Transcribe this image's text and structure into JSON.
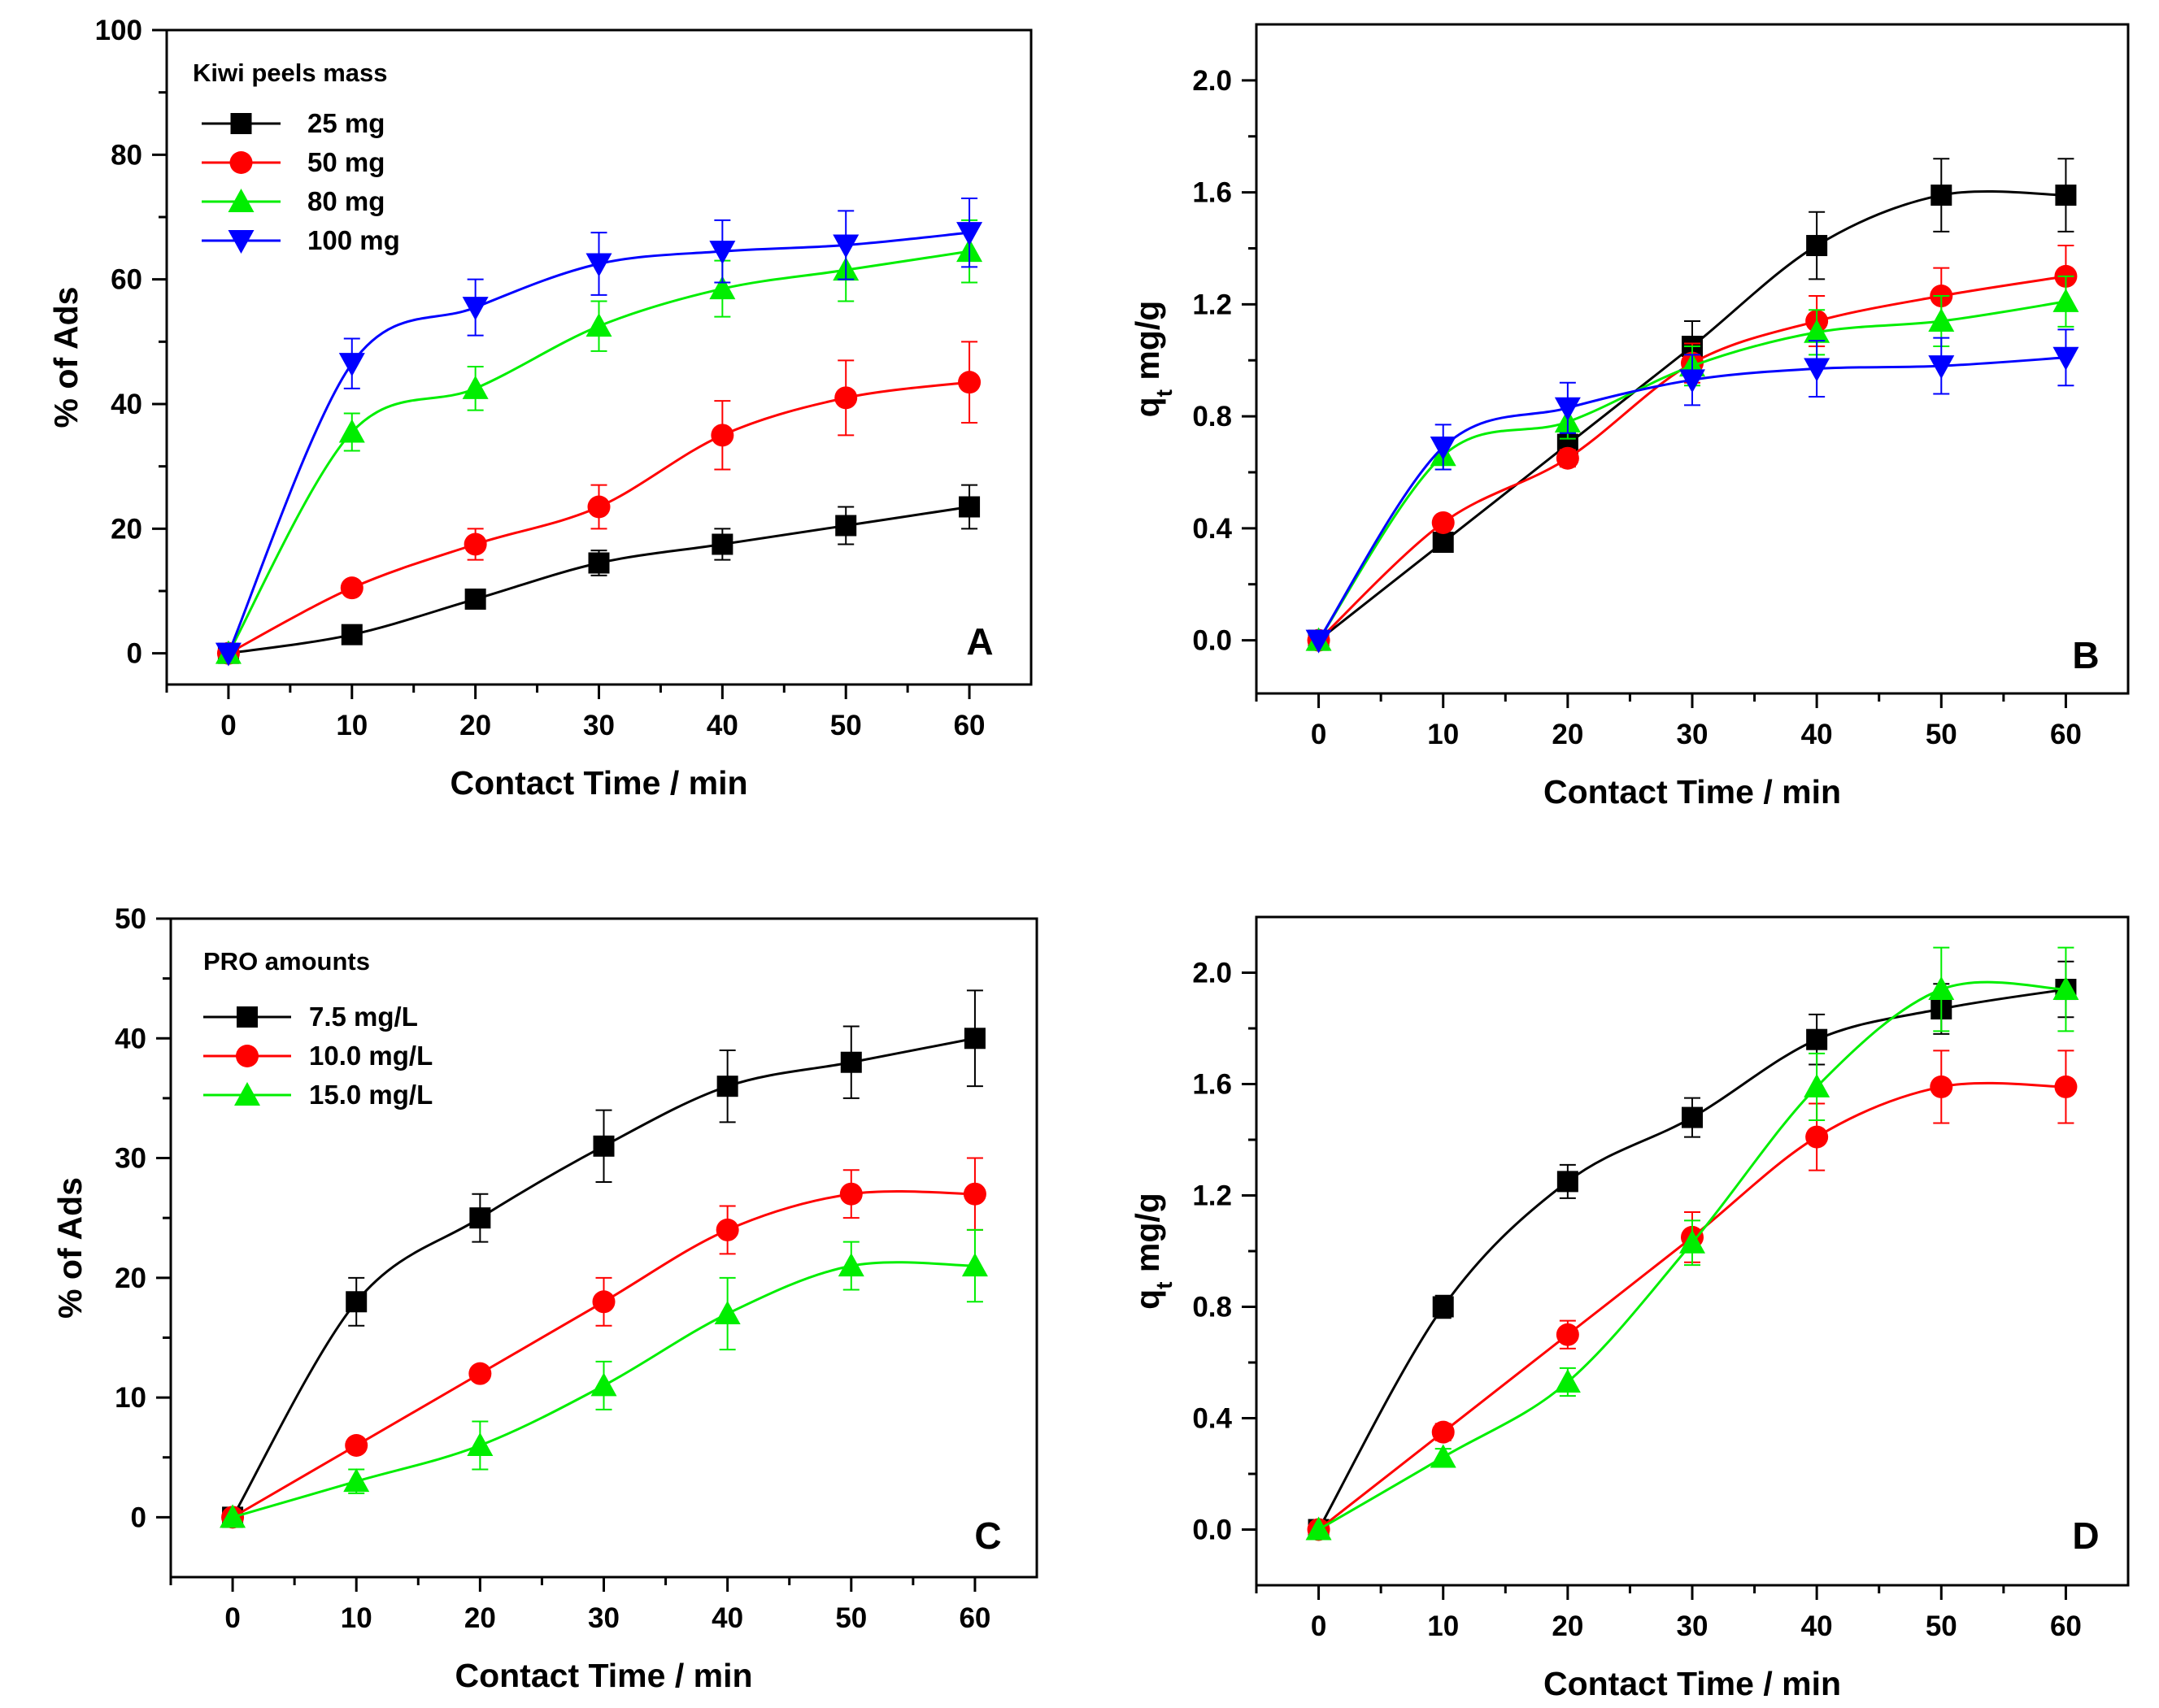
{
  "chart_data": [
    {
      "panel": "A",
      "type": "line",
      "xlabel": "Contact Time / min",
      "ylabel": "% of Ads",
      "xlim": [
        -5,
        65
      ],
      "ylim": [
        -5,
        100
      ],
      "xticks": [
        0,
        10,
        20,
        30,
        40,
        50,
        60
      ],
      "yticks": [
        0,
        20,
        40,
        60,
        80,
        100
      ],
      "legend_title": "Kiwi peels mass",
      "legend_position": "top-left",
      "x": [
        0,
        10,
        20,
        30,
        40,
        50,
        60
      ],
      "series": [
        {
          "name": "25 mg",
          "color": "#000000",
          "marker": "square",
          "values": [
            0,
            3,
            8.7,
            14.5,
            17.5,
            20.5,
            23.5
          ],
          "errors": [
            0,
            0,
            1.5,
            2,
            2.5,
            3,
            3.5
          ]
        },
        {
          "name": "50 mg",
          "color": "#ff0000",
          "marker": "circle",
          "values": [
            0,
            10.5,
            17.5,
            23.5,
            35,
            41,
            43.5
          ],
          "errors": [
            0,
            0,
            2.5,
            3.5,
            5.5,
            6,
            6.5
          ]
        },
        {
          "name": "80 mg",
          "color": "#00ee00",
          "marker": "triangle-up",
          "values": [
            0,
            35.5,
            42.5,
            52.5,
            58.5,
            61.5,
            64.5
          ],
          "errors": [
            0,
            3,
            3.5,
            4,
            4.5,
            5,
            5
          ]
        },
        {
          "name": "100 mg",
          "color": "#0000ff",
          "marker": "triangle-down",
          "values": [
            0,
            46.5,
            55.5,
            62.5,
            64.5,
            65.5,
            67.5
          ],
          "errors": [
            0,
            4,
            4.5,
            5,
            5,
            5.5,
            5.5
          ]
        }
      ]
    },
    {
      "panel": "B",
      "type": "line",
      "xlabel": "Contact Time / min",
      "ylabel": "q",
      "ylabel_sub": "t",
      "ylabel_suffix": " mg/g",
      "xlim": [
        -5,
        65
      ],
      "ylim": [
        -0.19,
        2.2
      ],
      "xticks": [
        0,
        10,
        20,
        30,
        40,
        50,
        60
      ],
      "yticks": [
        0.0,
        0.4,
        0.8,
        1.2,
        1.6,
        2.0
      ],
      "x": [
        0,
        10,
        20,
        30,
        40,
        50,
        60
      ],
      "series": [
        {
          "name": "25 mg",
          "color": "#000000",
          "marker": "square",
          "values": [
            0,
            0.35,
            0.7,
            1.05,
            1.41,
            1.59,
            1.59
          ],
          "errors": [
            0,
            0,
            0.04,
            0.09,
            0.12,
            0.13,
            0.13
          ]
        },
        {
          "name": "50 mg",
          "color": "#ff0000",
          "marker": "circle",
          "values": [
            0,
            0.42,
            0.65,
            0.99,
            1.14,
            1.23,
            1.3
          ],
          "errors": [
            0,
            0,
            0.03,
            0.07,
            0.09,
            0.1,
            0.11
          ]
        },
        {
          "name": "80 mg",
          "color": "#00ee00",
          "marker": "triangle-up",
          "values": [
            0,
            0.66,
            0.78,
            0.98,
            1.1,
            1.14,
            1.21
          ],
          "errors": [
            0,
            0.05,
            0.06,
            0.07,
            0.08,
            0.09,
            0.09
          ]
        },
        {
          "name": "100 mg",
          "color": "#0000ff",
          "marker": "triangle-down",
          "values": [
            0,
            0.69,
            0.83,
            0.93,
            0.97,
            0.98,
            1.01
          ],
          "errors": [
            0,
            0.08,
            0.09,
            0.09,
            0.1,
            0.1,
            0.1
          ]
        }
      ]
    },
    {
      "panel": "C",
      "type": "line",
      "xlabel": "Contact Time / min",
      "ylabel": "% of Ads",
      "xlim": [
        -5,
        65
      ],
      "ylim": [
        -5,
        50
      ],
      "xticks": [
        0,
        10,
        20,
        30,
        40,
        50,
        60
      ],
      "yticks": [
        0,
        10,
        20,
        30,
        40,
        50
      ],
      "legend_title": "PRO amounts",
      "legend_position": "top-left",
      "x": [
        0,
        10,
        20,
        30,
        40,
        50,
        60
      ],
      "series": [
        {
          "name": "7.5 mg/L",
          "color": "#000000",
          "marker": "square",
          "values": [
            0,
            18,
            25,
            31,
            36,
            38,
            40
          ],
          "errors": [
            0,
            2,
            2,
            3,
            3,
            3,
            4
          ]
        },
        {
          "name": "10.0 mg/L",
          "color": "#ff0000",
          "marker": "circle",
          "values": [
            0,
            6,
            12,
            18,
            24,
            27,
            27
          ],
          "errors": [
            0,
            0,
            0,
            2,
            2,
            2,
            3
          ]
        },
        {
          "name": "15.0 mg/L",
          "color": "#00ee00",
          "marker": "triangle-up",
          "values": [
            0,
            3,
            6,
            11,
            17,
            21,
            21
          ],
          "errors": [
            0,
            1,
            2,
            2,
            3,
            2,
            3
          ]
        }
      ]
    },
    {
      "panel": "D",
      "type": "line",
      "xlabel": "Contact Time / min",
      "ylabel": "q",
      "ylabel_sub": "t",
      "ylabel_suffix": " mg/g",
      "xlim": [
        -5,
        65
      ],
      "ylim": [
        -0.2,
        2.2
      ],
      "xticks": [
        0,
        10,
        20,
        30,
        40,
        50,
        60
      ],
      "yticks": [
        0.0,
        0.4,
        0.8,
        1.2,
        1.6,
        2.0
      ],
      "x": [
        0,
        10,
        20,
        30,
        40,
        50,
        60
      ],
      "series": [
        {
          "name": "7.5 mg/L",
          "color": "#000000",
          "marker": "square",
          "values": [
            0,
            0.8,
            1.25,
            1.48,
            1.76,
            1.87,
            1.94
          ],
          "errors": [
            0,
            0.04,
            0.06,
            0.07,
            0.09,
            0.09,
            0.1
          ]
        },
        {
          "name": "10.0 mg/L",
          "color": "#ff0000",
          "marker": "circle",
          "values": [
            0,
            0.35,
            0.7,
            1.05,
            1.41,
            1.59,
            1.59
          ],
          "errors": [
            0,
            0.03,
            0.05,
            0.09,
            0.12,
            0.13,
            0.13
          ]
        },
        {
          "name": "15.0 mg/L",
          "color": "#00ee00",
          "marker": "triangle-up",
          "values": [
            0,
            0.26,
            0.53,
            1.03,
            1.59,
            1.94,
            1.94
          ],
          "errors": [
            0,
            0.03,
            0.05,
            0.08,
            0.12,
            0.15,
            0.15
          ]
        }
      ]
    }
  ]
}
